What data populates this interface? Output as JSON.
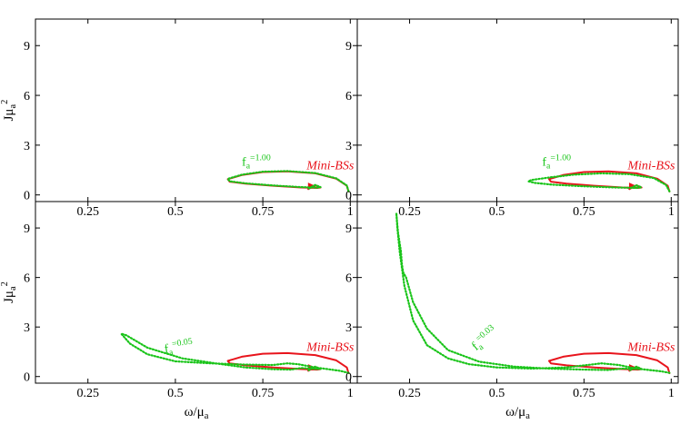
{
  "chart_data": [
    {
      "type": "line",
      "panel": "top-left",
      "xlim": [
        0.1,
        1.02
      ],
      "ylim": [
        -0.4,
        10.6
      ],
      "xticks": [
        "0.25",
        "0.5",
        "0.75",
        "1"
      ],
      "yticks": [
        "0",
        "3",
        "6",
        "9"
      ],
      "xlabel_parts": [],
      "ylabel_parts": [
        "Jμ",
        "a",
        "2"
      ],
      "series": [
        {
          "color": "#e8141c",
          "style": "solid",
          "x": [
            0.995,
            0.99,
            0.96,
            0.9,
            0.82,
            0.75,
            0.69,
            0.65,
            0.655,
            0.7,
            0.78,
            0.86,
            0.905,
            0.915,
            0.9,
            0.88
          ],
          "y": [
            0.2,
            0.55,
            0.98,
            1.3,
            1.42,
            1.38,
            1.2,
            0.95,
            0.8,
            0.68,
            0.55,
            0.45,
            0.42,
            0.45,
            0.58,
            0.35
          ]
        },
        {
          "color": "#19c419",
          "style": "dotted",
          "x": [
            0.995,
            0.99,
            0.96,
            0.9,
            0.82,
            0.75,
            0.69,
            0.65,
            0.655,
            0.7,
            0.78,
            0.86,
            0.905,
            0.915,
            0.9,
            0.88
          ],
          "y": [
            0.22,
            0.57,
            1.0,
            1.32,
            1.44,
            1.4,
            1.22,
            0.97,
            0.82,
            0.7,
            0.57,
            0.47,
            0.44,
            0.47,
            0.6,
            0.37
          ]
        }
      ],
      "annotations": [
        {
          "parts": [
            "f",
            "a",
            "=1.00"
          ],
          "color": "#19c419",
          "x": 0.69,
          "y": 1.75,
          "rotate": 0
        },
        {
          "parts": [
            "Mini-BSs"
          ],
          "color": "#e8141c",
          "x": 0.875,
          "y": 1.55,
          "rotate": 0
        }
      ]
    },
    {
      "type": "line",
      "panel": "top-right",
      "xlim": [
        0.1,
        1.02
      ],
      "ylim": [
        -0.4,
        10.6
      ],
      "xticks": [
        "0.25",
        "0.5",
        "0.75",
        "1"
      ],
      "yticks": [
        "0",
        "3",
        "6",
        "9"
      ],
      "xlabel_parts": [],
      "ylabel_parts": [],
      "series": [
        {
          "color": "#e8141c",
          "style": "solid",
          "x": [
            0.995,
            0.99,
            0.96,
            0.9,
            0.82,
            0.75,
            0.69,
            0.65,
            0.655,
            0.7,
            0.78,
            0.86,
            0.905,
            0.915,
            0.9,
            0.88
          ],
          "y": [
            0.2,
            0.55,
            0.98,
            1.3,
            1.42,
            1.38,
            1.2,
            0.95,
            0.8,
            0.68,
            0.55,
            0.45,
            0.42,
            0.45,
            0.58,
            0.35
          ]
        },
        {
          "color": "#19c419",
          "style": "dotted",
          "x": [
            0.995,
            0.985,
            0.95,
            0.88,
            0.8,
            0.72,
            0.65,
            0.6,
            0.59,
            0.61,
            0.66,
            0.75,
            0.84,
            0.9,
            0.915,
            0.9,
            0.88
          ],
          "y": [
            0.22,
            0.6,
            1.02,
            1.25,
            1.3,
            1.22,
            1.05,
            0.9,
            0.82,
            0.72,
            0.62,
            0.52,
            0.45,
            0.42,
            0.46,
            0.58,
            0.37
          ]
        }
      ],
      "annotations": [
        {
          "parts": [
            "f",
            "a",
            "=1.00"
          ],
          "color": "#19c419",
          "x": 0.63,
          "y": 1.75,
          "rotate": 0
        },
        {
          "parts": [
            "Mini-BSs"
          ],
          "color": "#e8141c",
          "x": 0.875,
          "y": 1.55,
          "rotate": 0
        }
      ]
    },
    {
      "type": "line",
      "panel": "bottom-left",
      "xlim": [
        0.1,
        1.02
      ],
      "ylim": [
        -0.4,
        10.6
      ],
      "xticks": [
        "0.25",
        "0.5",
        "0.75",
        "1"
      ],
      "yticks": [
        "0",
        "3",
        "6",
        "9"
      ],
      "xlabel_parts": [
        "ω/μ",
        "a"
      ],
      "ylabel_parts": [
        "Jμ",
        "a",
        "2"
      ],
      "series": [
        {
          "color": "#e8141c",
          "style": "solid",
          "x": [
            0.995,
            0.99,
            0.96,
            0.9,
            0.82,
            0.75,
            0.69,
            0.65,
            0.655,
            0.7,
            0.78,
            0.86,
            0.905,
            0.915,
            0.9,
            0.88
          ],
          "y": [
            0.2,
            0.55,
            0.98,
            1.3,
            1.42,
            1.38,
            1.2,
            0.95,
            0.8,
            0.68,
            0.55,
            0.45,
            0.42,
            0.45,
            0.58,
            0.35
          ]
        },
        {
          "color": "#19c419",
          "style": "dotted",
          "x": [
            0.995,
            0.97,
            0.9,
            0.85,
            0.82,
            0.78,
            0.7,
            0.6,
            0.5,
            0.42,
            0.37,
            0.345,
            0.36,
            0.42,
            0.52,
            0.62,
            0.7,
            0.78,
            0.83,
            0.86,
            0.9,
            0.915,
            0.9,
            0.88
          ],
          "y": [
            0.22,
            0.35,
            0.55,
            0.75,
            0.8,
            0.7,
            0.72,
            0.8,
            0.92,
            1.35,
            2.0,
            2.6,
            2.5,
            1.75,
            1.1,
            0.78,
            0.55,
            0.44,
            0.42,
            0.52,
            0.46,
            0.46,
            0.6,
            0.37
          ]
        }
      ],
      "annotations": [
        {
          "parts": [
            "f",
            "a",
            "=0.05"
          ],
          "color": "#19c419",
          "x": 0.47,
          "y": 1.42,
          "rotate": -8
        },
        {
          "parts": [
            "Mini-BSs"
          ],
          "color": "#e8141c",
          "x": 0.875,
          "y": 1.55,
          "rotate": 0
        }
      ]
    },
    {
      "type": "line",
      "panel": "bottom-right",
      "xlim": [
        0.1,
        1.02
      ],
      "ylim": [
        -0.4,
        10.6
      ],
      "xticks": [
        "0.25",
        "0.5",
        "0.75",
        "1"
      ],
      "yticks": [
        "0",
        "3",
        "6",
        "9"
      ],
      "xlabel_parts": [
        "ω/μ",
        "a"
      ],
      "ylabel_parts": [],
      "series": [
        {
          "color": "#e8141c",
          "style": "solid",
          "x": [
            0.995,
            0.99,
            0.96,
            0.9,
            0.82,
            0.75,
            0.69,
            0.65,
            0.655,
            0.7,
            0.78,
            0.86,
            0.905,
            0.915,
            0.9,
            0.88
          ],
          "y": [
            0.2,
            0.55,
            0.98,
            1.3,
            1.42,
            1.38,
            1.2,
            0.95,
            0.8,
            0.68,
            0.55,
            0.45,
            0.42,
            0.45,
            0.58,
            0.35
          ]
        },
        {
          "color": "#19c419",
          "style": "dotted",
          "x": [
            0.995,
            0.97,
            0.9,
            0.85,
            0.8,
            0.7,
            0.6,
            0.5,
            0.42,
            0.36,
            0.3,
            0.26,
            0.235,
            0.222,
            0.215,
            0.212,
            0.214,
            0.217,
            0.225,
            0.228,
            0.232,
            0.24,
            0.26,
            0.3,
            0.36,
            0.45,
            0.55,
            0.65,
            0.75,
            0.82,
            0.86,
            0.9,
            0.915,
            0.9,
            0.88
          ],
          "y": [
            0.22,
            0.32,
            0.48,
            0.7,
            0.8,
            0.55,
            0.48,
            0.55,
            0.75,
            1.1,
            1.9,
            3.4,
            5.5,
            7.5,
            9.0,
            9.9,
            9.4,
            8.7,
            7.6,
            6.8,
            6.3,
            6.0,
            4.5,
            2.9,
            1.6,
            0.9,
            0.6,
            0.48,
            0.42,
            0.4,
            0.48,
            0.46,
            0.46,
            0.6,
            0.37
          ]
        }
      ],
      "annotations": [
        {
          "parts": [
            "f",
            "a",
            "=0.03"
          ],
          "color": "#19c419",
          "x": 0.44,
          "y": 1.55,
          "rotate": -40
        },
        {
          "parts": [
            "Mini-BSs"
          ],
          "color": "#e8141c",
          "x": 0.875,
          "y": 1.55,
          "rotate": 0
        }
      ]
    }
  ]
}
